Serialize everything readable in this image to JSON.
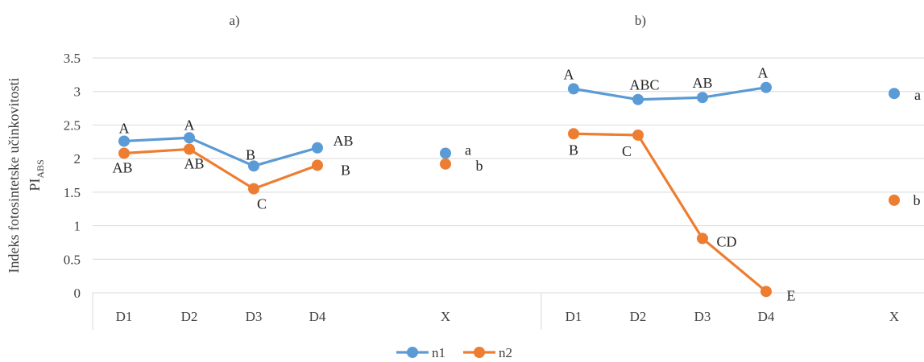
{
  "chart_data": {
    "type": "line",
    "ylabel": "Indeks fotosintetske učinkovitosti",
    "ylabel_main": "PI",
    "ylabel_sub": "ABS",
    "ylim": [
      0,
      3.5
    ],
    "y_ticks": [
      "0",
      "0.5",
      "1",
      "1.5",
      "2",
      "2.5",
      "3",
      "3.5"
    ],
    "grid": true,
    "legend_position": "bottom",
    "colors": {
      "n1": "#5B9BD5",
      "n2": "#ED7D31"
    },
    "legend": [
      {
        "name": "n1",
        "color": "#5B9BD5"
      },
      {
        "name": "n2",
        "color": "#ED7D31"
      }
    ],
    "panels": [
      {
        "label": "a)",
        "categories": [
          "D1",
          "D2",
          "D3",
          "D4",
          "X"
        ],
        "series": [
          {
            "name": "n1",
            "values": [
              2.26,
              2.31,
              1.89,
              2.16,
              2.08
            ],
            "labels": [
              "A",
              "A",
              "B",
              "AB",
              "a"
            ]
          },
          {
            "name": "n2",
            "values": [
              2.08,
              2.14,
              1.55,
              1.9,
              1.92
            ],
            "labels": [
              "AB",
              "AB",
              "C",
              "B",
              "b"
            ]
          }
        ]
      },
      {
        "label": "b)",
        "categories": [
          "D1",
          "D2",
          "D3",
          "D4",
          "X"
        ],
        "series": [
          {
            "name": "n1",
            "values": [
              3.04,
              2.88,
              2.91,
              3.06,
              2.97
            ],
            "labels": [
              "A",
              "ABC",
              "AB",
              "A",
              "a"
            ]
          },
          {
            "name": "n2",
            "values": [
              2.37,
              2.35,
              0.81,
              0.02,
              1.38
            ],
            "labels": [
              "B",
              "C",
              "CD",
              "E",
              "b"
            ]
          }
        ]
      }
    ]
  }
}
